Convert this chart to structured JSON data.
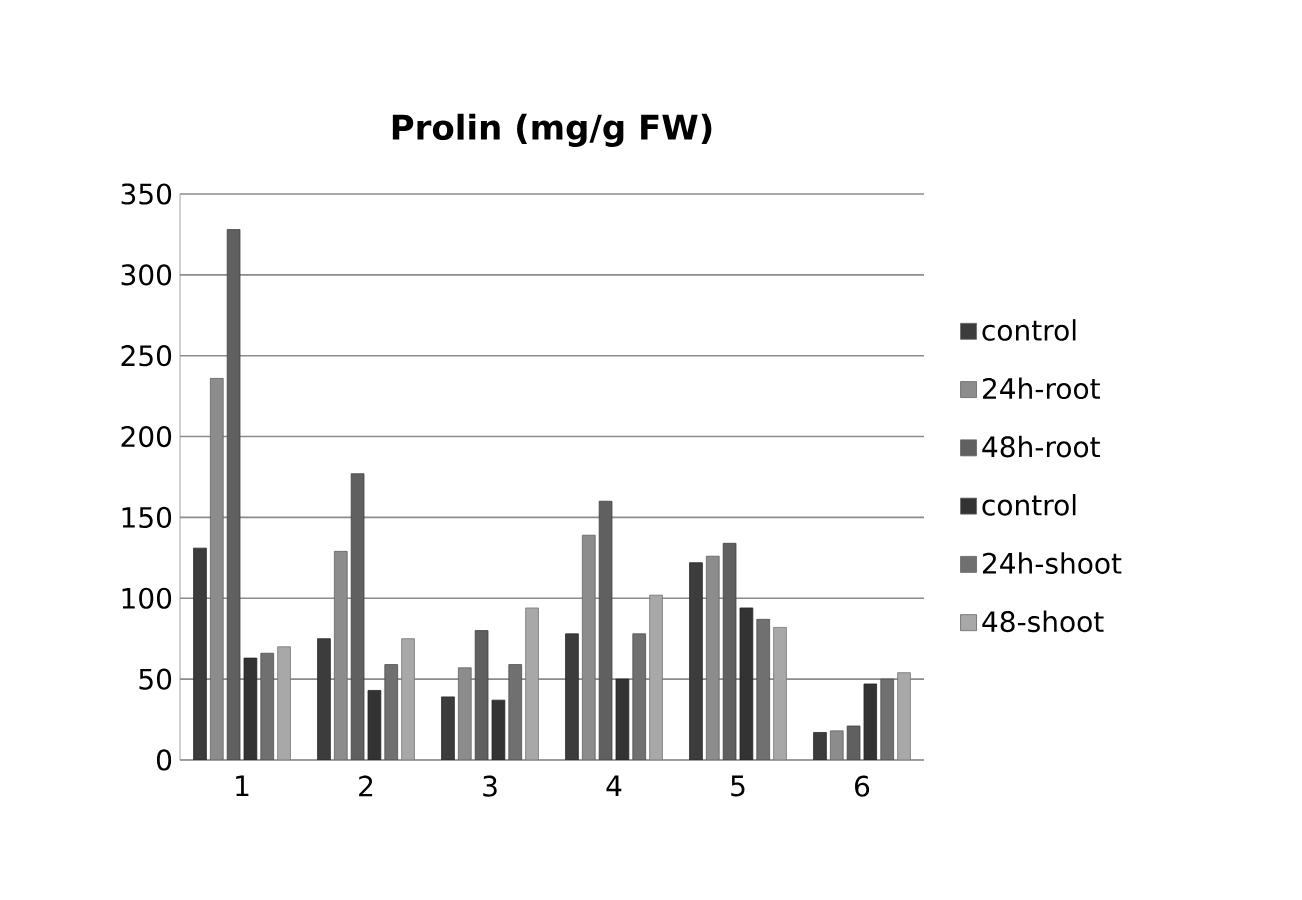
{
  "chart_data": {
    "type": "bar",
    "title": "Prolin (mg/g FW)",
    "categories": [
      "1",
      "2",
      "3",
      "4",
      "5",
      "6"
    ],
    "series": [
      {
        "name": "control",
        "color": "#3c3c3c",
        "values": [
          131,
          75,
          39,
          78,
          122,
          17
        ]
      },
      {
        "name": "24h-root",
        "color": "#8c8c8c",
        "values": [
          236,
          129,
          57,
          139,
          126,
          18
        ]
      },
      {
        "name": "48h-root",
        "color": "#606060",
        "values": [
          328,
          177,
          80,
          160,
          134,
          21
        ]
      },
      {
        "name": "control",
        "color": "#333333",
        "values": [
          63,
          43,
          37,
          50,
          94,
          47
        ]
      },
      {
        "name": "24h-shoot",
        "color": "#707070",
        "values": [
          66,
          59,
          59,
          78,
          87,
          50
        ]
      },
      {
        "name": "48-shoot",
        "color": "#a8a8a8",
        "values": [
          70,
          75,
          94,
          102,
          82,
          54
        ]
      }
    ],
    "ylim": [
      0,
      350
    ],
    "yticks": [
      0,
      50,
      100,
      150,
      200,
      250,
      300,
      350
    ],
    "grid": "y",
    "legend": "right"
  }
}
